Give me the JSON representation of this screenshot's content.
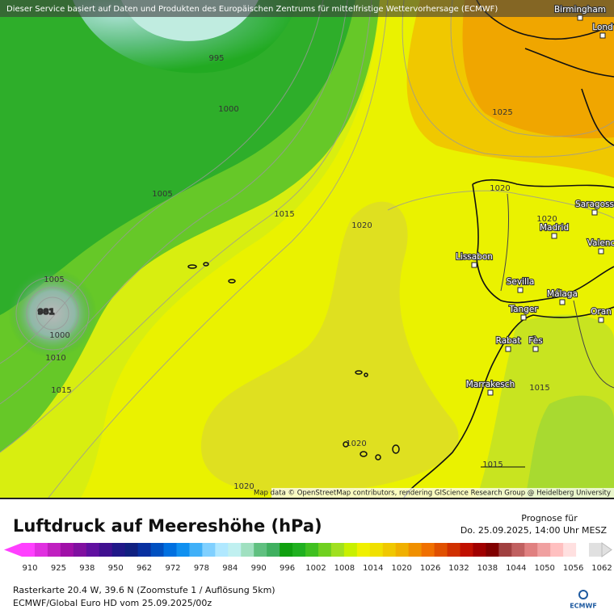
{
  "header": {
    "notice": "Dieser Service basiert auf Daten und Produkten des Europäischen Zentrums für mittelfristige Wettervorhersage (ECMWF)"
  },
  "map": {
    "isobar_labels": [
      995,
      1000,
      1005,
      1015,
      1020,
      1025,
      1020,
      1020,
      1005,
      981,
      1000,
      1010,
      1015,
      1020,
      1015,
      1015,
      1020
    ],
    "places": [
      "Birmingham",
      "Lond",
      "Saragoss",
      "Madrid",
      "Valenc",
      "Lissabon",
      "Sevilla",
      "Málaga",
      "Tanger",
      "Oran",
      "Rabat",
      "Fès",
      "Marrakesch"
    ],
    "attribution": "Map data © OpenStreetMap contributors, rendering GIScience Research Group @ Heidelberg University"
  },
  "legend": {
    "title": "Luftdruck auf Meereshöhe (hPa)",
    "forecast_label": "Prognose für",
    "forecast_time": "Do. 25.09.2025, 14:00 Uhr MESZ",
    "ticks": [
      910,
      925,
      938,
      950,
      962,
      972,
      978,
      984,
      990,
      996,
      1002,
      1008,
      1014,
      1020,
      1026,
      1032,
      1038,
      1044,
      1050,
      1056,
      1062
    ],
    "colors": [
      "#ff40ff",
      "#e030e0",
      "#c020c0",
      "#a010a8",
      "#8010a0",
      "#6010a0",
      "#401090",
      "#201888",
      "#102080",
      "#0830a0",
      "#0050c0",
      "#0070e0",
      "#1090f0",
      "#40b0f8",
      "#80d0ff",
      "#b0e8ff",
      "#c0f0f0",
      "#a0e0c0",
      "#60c080",
      "#40b060",
      "#10a010",
      "#20b020",
      "#40c020",
      "#70d020",
      "#a0e020",
      "#c8f000",
      "#f0f000",
      "#f0e000",
      "#f0c800",
      "#f0b000",
      "#f09000",
      "#f07000",
      "#e05000",
      "#d03000",
      "#c01000",
      "#a00000",
      "#800000",
      "#a04040",
      "#c06060",
      "#e08080",
      "#f0a0a0",
      "#ffc0c0",
      "#ffe0e0",
      "#ffffff",
      "#e0e0e0"
    ]
  },
  "footer": {
    "raster": "Rasterkarte 20.4 W, 39.6 N (Zoomstufe 1 / Auflösung 5km)",
    "model": "ECMWF/Global Euro HD vom 25.09.2025/00z",
    "logo": "ECMWF"
  }
}
